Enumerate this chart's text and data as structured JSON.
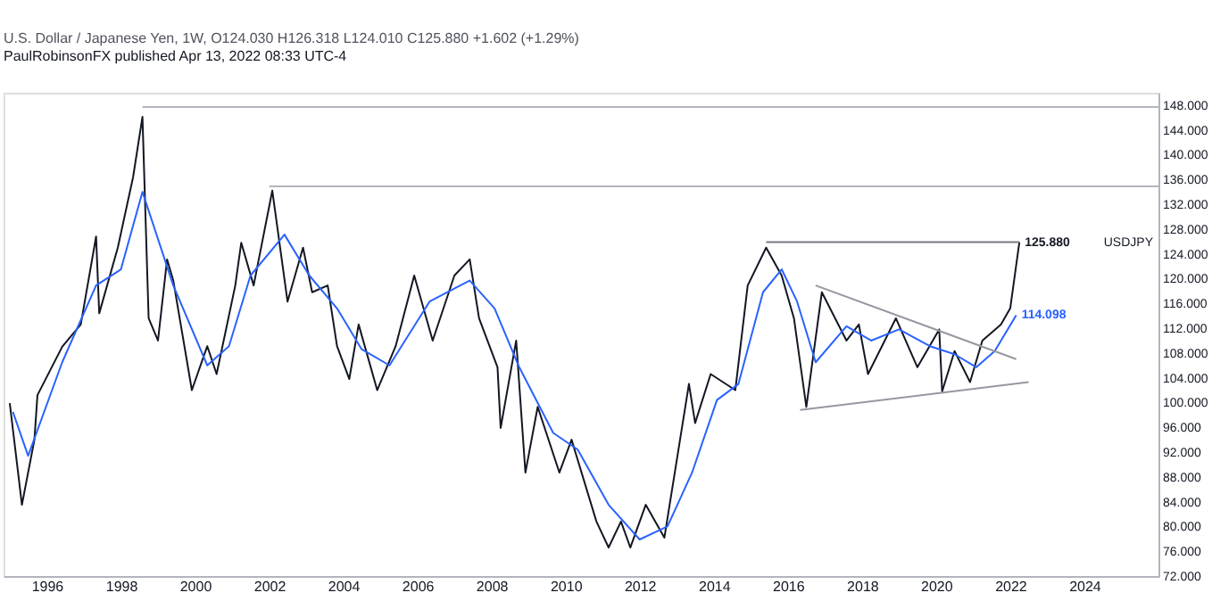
{
  "chart_data": {
    "type": "line",
    "title": "U.S. Dollar / Japanese Yen, 1W, O124.030 H126.318 L124.010 C125.880 +1.602 (+1.29%)",
    "annotations": [
      "PaulRobinsonFX published Apr 13, 2022 08:33 UTC-4"
    ],
    "xlim": [
      "1994-11",
      "2026-01"
    ],
    "xticks": [
      "1996",
      "1998",
      "2000",
      "2002",
      "2004",
      "2006",
      "2008",
      "2010",
      "2012",
      "2014",
      "2016",
      "2018",
      "2020",
      "2022",
      "2024"
    ],
    "ylim": [
      72,
      150
    ],
    "yticks": [
      {
        "value": 72,
        "label": "72.000"
      },
      {
        "value": 76,
        "label": "76.000"
      },
      {
        "value": 80,
        "label": "80.000"
      },
      {
        "value": 84,
        "label": "84.000"
      },
      {
        "value": 88,
        "label": "88.000"
      },
      {
        "value": 92,
        "label": "92.000"
      },
      {
        "value": 96,
        "label": "96.000"
      },
      {
        "value": 100,
        "label": "100.000"
      },
      {
        "value": 104,
        "label": "104.000"
      },
      {
        "value": 108,
        "label": "108.000"
      },
      {
        "value": 112,
        "label": "112.000"
      },
      {
        "value": 116,
        "label": "116.000"
      },
      {
        "value": 120,
        "label": "120.000"
      },
      {
        "value": 124,
        "label": "124.000"
      },
      {
        "value": 128,
        "label": "128.000"
      },
      {
        "value": 132,
        "label": "132.000"
      },
      {
        "value": 136,
        "label": "136.000"
      },
      {
        "value": 140,
        "label": "140.000"
      },
      {
        "value": 144,
        "label": "144.000"
      },
      {
        "value": 148,
        "label": "148.000"
      }
    ],
    "grid": false,
    "legend": false,
    "marker": "none",
    "line_style": "solid",
    "series": [
      {
        "name": "USDJPY",
        "color": "#131722",
        "x": [
          "1995-01",
          "1995-05",
          "1995-09",
          "1995-10",
          "1996-06",
          "1996-12",
          "1997-05",
          "1997-06",
          "1997-12",
          "1998-05",
          "1998-08",
          "1998-10",
          "1999-01",
          "1999-04",
          "1999-06",
          "1999-12",
          "2000-05",
          "2000-08",
          "2001-02",
          "2001-04",
          "2001-08",
          "2002-02",
          "2002-07",
          "2002-12",
          "2003-03",
          "2003-08",
          "2003-11",
          "2004-03",
          "2004-06",
          "2004-12",
          "2005-06",
          "2005-12",
          "2006-06",
          "2007-01",
          "2007-06",
          "2007-09",
          "2008-03",
          "2008-04",
          "2008-09",
          "2008-12",
          "2009-04",
          "2009-11",
          "2010-03",
          "2010-11",
          "2011-03",
          "2011-07",
          "2011-10",
          "2012-03",
          "2012-09",
          "2013-05",
          "2013-07",
          "2013-12",
          "2014-08",
          "2014-12",
          "2015-06",
          "2015-11",
          "2016-03",
          "2016-07",
          "2016-12",
          "2017-08",
          "2017-12",
          "2018-03",
          "2018-12",
          "2019-07",
          "2020-02",
          "2020-03",
          "2020-07",
          "2020-12",
          "2021-04",
          "2021-10",
          "2022-01",
          "2022-04"
        ],
        "value_labels": [
          null,
          null,
          null,
          null,
          null,
          null,
          null,
          null,
          null,
          null,
          null,
          null,
          null,
          null,
          null,
          null,
          null,
          null,
          null,
          null,
          null,
          null,
          null,
          null,
          null,
          null,
          null,
          null,
          null,
          null,
          null,
          null,
          null,
          null,
          null,
          null,
          null,
          null,
          null,
          null,
          null,
          null,
          null,
          null,
          null,
          null,
          null,
          null,
          null,
          null,
          null,
          null,
          null,
          null,
          null,
          null,
          null,
          null,
          null,
          null,
          null,
          null,
          null,
          null,
          null,
          null,
          null,
          null,
          null,
          null,
          null,
          "125.880"
        ],
        "values": [
          99.9,
          83.5,
          94,
          101.2,
          109,
          112.6,
          126.8,
          114.4,
          125,
          136.4,
          146.1,
          113.6,
          110,
          123.1,
          119.7,
          102,
          109.1,
          104.6,
          118.9,
          125.8,
          118.9,
          134.2,
          116.3,
          125,
          117.8,
          118.9,
          109.1,
          103.8,
          112.6,
          102,
          109.1,
          120.5,
          110,
          120.5,
          123.1,
          113.6,
          105.7,
          95.9,
          110,
          88.7,
          99.3,
          88.7,
          94,
          80.8,
          76.6,
          80.8,
          76.6,
          83.5,
          78.2,
          103,
          96.7,
          104.6,
          102,
          118.9,
          125,
          120.5,
          113.6,
          99.3,
          117.8,
          110,
          112.6,
          104.6,
          113.6,
          105.7,
          111.8,
          101.8,
          108.3,
          103.3,
          110,
          112.6,
          115.2,
          125.88
        ]
      },
      {
        "color": "#2962ff",
        "x": [
          "1995-02",
          "1995-07",
          "1996-06",
          "1997-05",
          "1998-01",
          "1998-08",
          "1999-06",
          "2000-05",
          "2000-12",
          "2001-07",
          "2002-06",
          "2003-02",
          "2003-11",
          "2004-07",
          "2005-04",
          "2006-05",
          "2007-06",
          "2008-02",
          "2008-10",
          "2009-09",
          "2010-05",
          "2011-03",
          "2012-01",
          "2012-10",
          "2013-06",
          "2014-02",
          "2014-09",
          "2015-05",
          "2015-11",
          "2016-04",
          "2016-10",
          "2017-08",
          "2018-04",
          "2019-01",
          "2019-11",
          "2020-07",
          "2021-02",
          "2021-08",
          "2022-03"
        ],
        "value_labels": [
          null,
          null,
          null,
          null,
          null,
          null,
          null,
          null,
          null,
          null,
          null,
          null,
          null,
          null,
          null,
          null,
          null,
          null,
          null,
          null,
          null,
          null,
          null,
          null,
          null,
          null,
          null,
          null,
          null,
          null,
          null,
          null,
          null,
          null,
          null,
          null,
          null,
          null,
          "114.098"
        ],
        "values": [
          98.5,
          91.4,
          106.5,
          118.9,
          121.5,
          134,
          118.9,
          106,
          109.1,
          120.5,
          127.1,
          120.5,
          115.2,
          108.6,
          106,
          116.3,
          119.7,
          115.2,
          105.7,
          95.1,
          92.4,
          83.5,
          77.9,
          80,
          88.7,
          100.4,
          103,
          117.8,
          121.5,
          116.3,
          106.5,
          112.3,
          110,
          111.8,
          109.1,
          107.8,
          105.7,
          108.3,
          114.098
        ]
      },
      {
        "color": "#b2b5be",
        "x": [
          "1998-08",
          "2026-01"
        ],
        "values": [
          147.7,
          147.7
        ]
      },
      {
        "color": "#b2b5be",
        "x": [
          "2002-01",
          "2026-01"
        ],
        "values": [
          134.9,
          134.9
        ]
      },
      {
        "color": "#787b86",
        "x": [
          "2015-06",
          "2022-04"
        ],
        "values": [
          125.9,
          125.9
        ]
      },
      {
        "color": "#9598a1",
        "x": [
          "2016-10",
          "2022-03"
        ],
        "values": [
          118.9,
          107
        ]
      },
      {
        "color": "#9598a1",
        "x": [
          "2016-05",
          "2022-07"
        ],
        "values": [
          98.8,
          103.3
        ]
      }
    ]
  }
}
